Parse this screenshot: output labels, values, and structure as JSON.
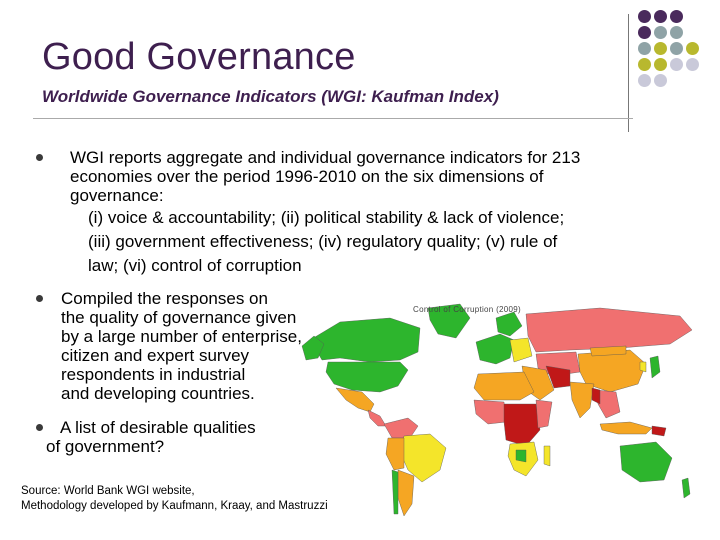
{
  "slide": {
    "title": "Good Governance",
    "subtitle": "Worldwide Governance Indicators (WGI: Kaufman Index)",
    "bullets": [
      {
        "lines": [
          "WGI reports aggregate and individual governance indicators for 213",
          "economies over the period 1996-2010 on the six dimensions of",
          "governance:"
        ],
        "sublines": [
          "(i) voice & accountability; (ii) political stability & lack of violence;",
          "(iii) government effectiveness; (iv) regulatory quality; (v) rule of",
          "law; (vi) control of corruption"
        ]
      },
      {
        "lines": [
          "Compiled the responses on",
          "the quality of governance given",
          "by a large number of enterprise,",
          "citizen and expert survey",
          "respondents in industrial",
          "and developing countries."
        ]
      },
      {
        "lines": [
          "A list of desirable qualities",
          "of government?"
        ]
      }
    ],
    "source_lines": [
      "Source: World Bank WGI website,",
      "Methodology developed by Kaufmann, Kraay, and Mastruzzi"
    ]
  },
  "map": {
    "title": "Control of Corruption (2009)",
    "colors": {
      "best": "#2db52d",
      "good": "#f4e52a",
      "mid": "#f5a623",
      "poor": "#f07070",
      "worst": "#c01818",
      "ocean": "#ffffff"
    }
  },
  "decor": {
    "dot_colors": [
      "#4a2a5c",
      "#8fa3a6",
      "#b8b82e",
      "#c9c9d9"
    ]
  }
}
